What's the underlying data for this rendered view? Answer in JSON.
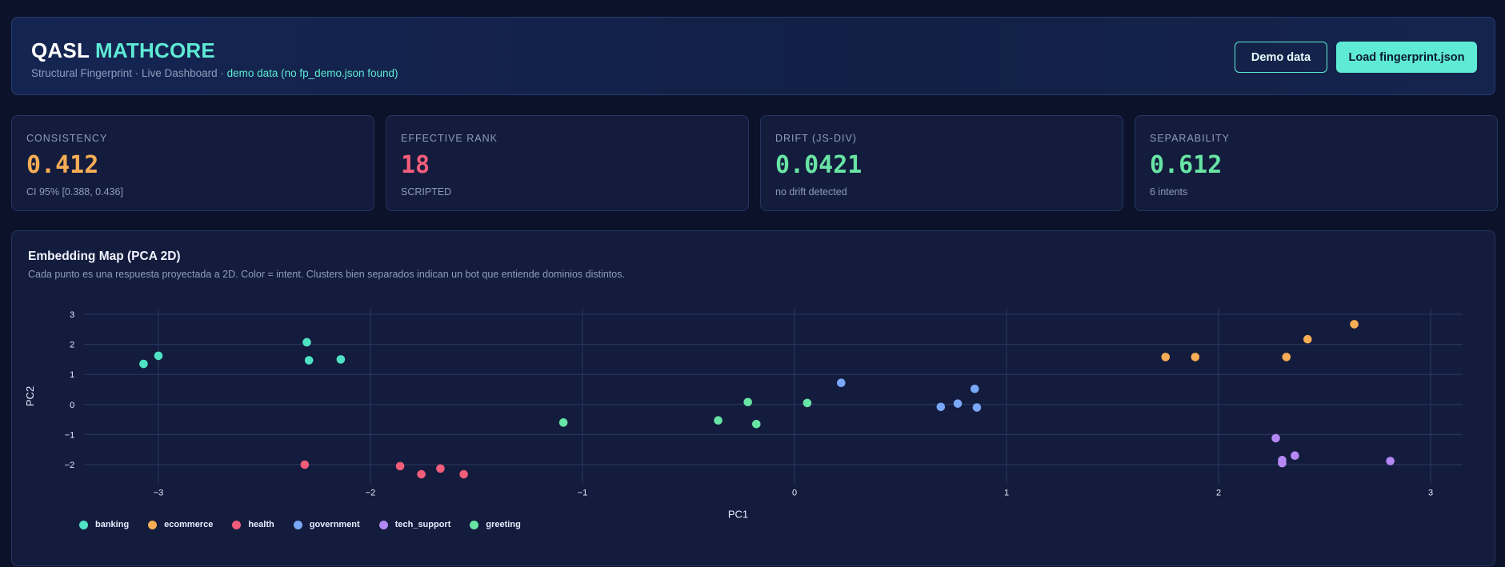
{
  "header": {
    "brand_primary": "QASL",
    "brand_accent": "MATHCORE",
    "subtitle_main": "Structural Fingerprint · Live Dashboard · ",
    "subtitle_highlight": "demo data (no fp_demo.json found)",
    "demo_button": "Demo data",
    "load_button": "Load fingerprint.json"
  },
  "metrics": [
    {
      "label": "CONSISTENCY",
      "value": "0.412",
      "sub": "CI 95% [0.388, 0.436]",
      "color": "#f6ad55"
    },
    {
      "label": "EFFECTIVE RANK",
      "value": "18",
      "sub": "SCRIPTED",
      "color": "#f25d7a"
    },
    {
      "label": "DRIFT (JS-DIV)",
      "value": "0.0421",
      "sub": "no drift detected",
      "color": "#68e4a4"
    },
    {
      "label": "SEPARABILITY",
      "value": "0.612",
      "sub": "6 intents",
      "color": "#68e4a4"
    }
  ],
  "panel": {
    "title": "Embedding Map (PCA 2D)",
    "description": "Cada punto es una respuesta proyectada a 2D. Color = intent. Clusters bien separados indican un bot que entiende dominios distintos."
  },
  "chart_data": {
    "type": "scatter",
    "xlabel": "PC1",
    "ylabel": "PC2",
    "xlim": [
      -3.35,
      3.15
    ],
    "ylim": [
      -2.65,
      3.2
    ],
    "xticks": [
      -3,
      -2,
      -1,
      0,
      1,
      2,
      3
    ],
    "yticks": [
      -2,
      -1,
      0,
      1,
      2,
      3
    ],
    "grid": true,
    "legend_position": "bottom-left",
    "series": [
      {
        "name": "banking",
        "color": "#4fe3c4",
        "points": [
          [
            -3.07,
            1.35
          ],
          [
            -3.0,
            1.62
          ],
          [
            -2.3,
            2.07
          ],
          [
            -2.29,
            1.47
          ],
          [
            -2.14,
            1.5
          ]
        ]
      },
      {
        "name": "ecommerce",
        "color": "#f6ad55",
        "points": [
          [
            1.75,
            1.58
          ],
          [
            1.89,
            1.58
          ],
          [
            2.32,
            1.58
          ],
          [
            2.42,
            2.17
          ],
          [
            2.64,
            2.67
          ]
        ]
      },
      {
        "name": "health",
        "color": "#f25d7a",
        "points": [
          [
            -2.31,
            -2.0
          ],
          [
            -1.86,
            -2.05
          ],
          [
            -1.76,
            -2.32
          ],
          [
            -1.67,
            -2.13
          ],
          [
            -1.56,
            -2.32
          ]
        ]
      },
      {
        "name": "government",
        "color": "#7aa7f7",
        "points": [
          [
            0.22,
            0.72
          ],
          [
            0.69,
            -0.08
          ],
          [
            0.77,
            0.03
          ],
          [
            0.85,
            0.52
          ],
          [
            0.86,
            -0.1
          ]
        ]
      },
      {
        "name": "tech_support",
        "color": "#b388f5",
        "points": [
          [
            2.27,
            -1.12
          ],
          [
            2.3,
            -1.85
          ],
          [
            2.3,
            -1.95
          ],
          [
            2.36,
            -1.7
          ],
          [
            2.81,
            -1.88
          ]
        ]
      },
      {
        "name": "greeting",
        "color": "#68e4a4",
        "points": [
          [
            -1.09,
            -0.6
          ],
          [
            -0.36,
            -0.53
          ],
          [
            -0.22,
            0.08
          ],
          [
            -0.18,
            -0.65
          ],
          [
            0.06,
            0.05
          ]
        ]
      }
    ]
  }
}
